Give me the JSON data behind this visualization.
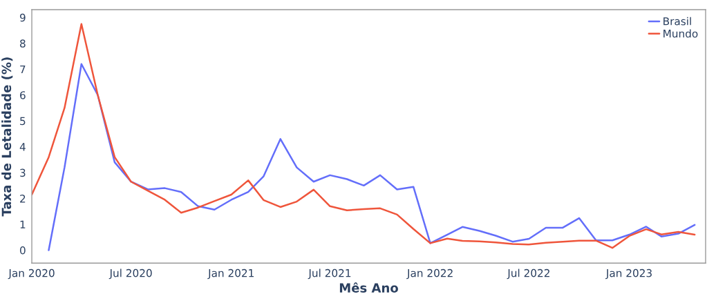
{
  "chart_data": {
    "type": "line",
    "xlabel": "Mês Ano",
    "ylabel": "Taxa de Letalidade (%)",
    "x": [
      "2020-01",
      "2020-02",
      "2020-03",
      "2020-04",
      "2020-05",
      "2020-06",
      "2020-07",
      "2020-08",
      "2020-09",
      "2020-10",
      "2020-11",
      "2020-12",
      "2021-01",
      "2021-02",
      "2021-03",
      "2021-04",
      "2021-05",
      "2021-06",
      "2021-07",
      "2021-08",
      "2021-09",
      "2021-10",
      "2021-11",
      "2021-12",
      "2022-01",
      "2022-02",
      "2022-03",
      "2022-04",
      "2022-05",
      "2022-06",
      "2022-07",
      "2022-08",
      "2022-09",
      "2022-10",
      "2022-11",
      "2022-12",
      "2023-01",
      "2023-02",
      "2023-03",
      "2023-04",
      "2023-05"
    ],
    "series": [
      {
        "name": "Brasil",
        "color": "#636efa",
        "values": [
          null,
          0,
          3.2,
          7.2,
          6.0,
          3.4,
          2.65,
          2.35,
          2.4,
          2.25,
          1.7,
          1.57,
          1.95,
          2.25,
          2.85,
          4.3,
          3.2,
          2.65,
          2.9,
          2.75,
          2.5,
          2.9,
          2.35,
          2.45,
          0.27,
          0.6,
          0.9,
          0.75,
          0.56,
          0.33,
          0.44,
          0.87,
          0.87,
          1.24,
          0.38,
          0.38,
          0.6,
          0.91,
          0.53,
          0.64,
          0.98
        ]
      },
      {
        "name": "Mundo",
        "color": "#ef553b",
        "values": [
          2.15,
          3.6,
          5.5,
          8.75,
          6.0,
          3.6,
          2.65,
          2.3,
          1.95,
          1.45,
          1.65,
          1.9,
          2.15,
          2.7,
          1.94,
          1.67,
          1.88,
          2.34,
          1.7,
          1.54,
          1.59,
          1.62,
          1.38,
          0.82,
          0.27,
          0.45,
          0.36,
          0.34,
          0.3,
          0.24,
          0.22,
          0.29,
          0.33,
          0.37,
          0.37,
          0.09,
          0.55,
          0.81,
          0.61,
          0.71,
          0.6
        ]
      }
    ],
    "xlim": [
      "2020-01-01",
      "2023-05-21"
    ],
    "xticks": [
      {
        "value": "2020-01",
        "label": "Jan 2020"
      },
      {
        "value": "2020-07",
        "label": "Jul 2020"
      },
      {
        "value": "2021-01",
        "label": "Jan 2021"
      },
      {
        "value": "2021-07",
        "label": "Jul 2021"
      },
      {
        "value": "2022-01",
        "label": "Jan 2022"
      },
      {
        "value": "2022-07",
        "label": "Jul 2022"
      },
      {
        "value": "2023-01",
        "label": "Jan 2023"
      }
    ],
    "ylim": [
      -0.5,
      9.3
    ],
    "yticks": [
      0,
      1,
      2,
      3,
      4,
      5,
      6,
      7,
      8,
      9
    ],
    "grid": false,
    "legend": "top right"
  }
}
